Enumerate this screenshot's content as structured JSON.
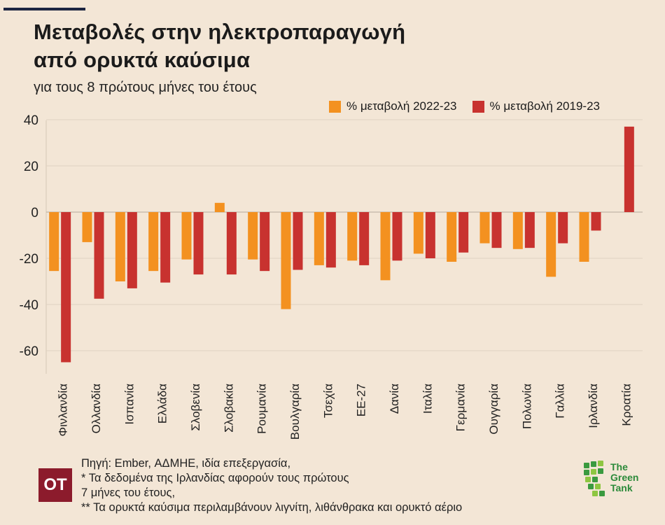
{
  "header": {
    "title_line1": "Μεταβολές στην ηλεκτροπαραγωγή",
    "title_line2": "από ορυκτά καύσιμα",
    "subtitle": "για τους 8 πρώτους μήνες του έτους"
  },
  "legend": {
    "series1_label": "% μεταβολή 2022-23",
    "series2_label": "% μεταβολή 2019-23"
  },
  "colors": {
    "series1": "#f39120",
    "series2": "#c8322f",
    "grid": "#e3d6c6",
    "background": "#f3e6d6"
  },
  "chart_data": {
    "type": "bar",
    "categories": [
      "Φινλανδία",
      "Ολλανδία",
      "Ισπανία",
      "Ελλάδα",
      "Σλοβενία",
      "Σλοβακία",
      "Ρουμανία",
      "Βουλγαρία",
      "Τσεχία",
      "ΕΕ-27",
      "Δανία",
      "Ιταλία",
      "Γερμανία",
      "Ουγγαρία",
      "Πολωνία",
      "Γαλλία",
      "Ιρλανδία",
      "Κροατία"
    ],
    "series": [
      {
        "name": "% μεταβολή 2022-23",
        "values": [
          -25.5,
          -13,
          -30,
          -25.5,
          -20.5,
          4,
          -20.5,
          -42,
          -23,
          -21,
          -29.5,
          -18,
          -21.5,
          -13.5,
          -16,
          -28,
          -21.5,
          null
        ]
      },
      {
        "name": "% μεταβολή 2019-23",
        "values": [
          -65,
          -37.5,
          -33,
          -30.5,
          -27,
          -27,
          -25.5,
          -25,
          -24,
          -23,
          -21,
          -20,
          -17.5,
          -15.5,
          -15.5,
          -13.5,
          -8,
          37
        ]
      }
    ],
    "yticks": [
      40,
      20,
      0,
      -20,
      -40,
      -60
    ],
    "ylim": [
      -70,
      40
    ],
    "grid": "horizontal",
    "legend_position": "top-right"
  },
  "footer": {
    "logo_text": "OT",
    "note_lines": [
      "Πηγή: Ember, ΑΔΜΗΕ, ιδία επεξεργασία,",
      "* Τα δεδομένα της Ιρλανδίας αφορούν τους πρώτους",
      "7 μήνες του έτους,",
      "** Τα ορυκτά καύσιμα περιλαμβάνουν λιγνίτη, λιθάνθρακα και ορυκτό αέριο"
    ],
    "brand_lines": [
      "The",
      "Green",
      "Tank"
    ]
  }
}
